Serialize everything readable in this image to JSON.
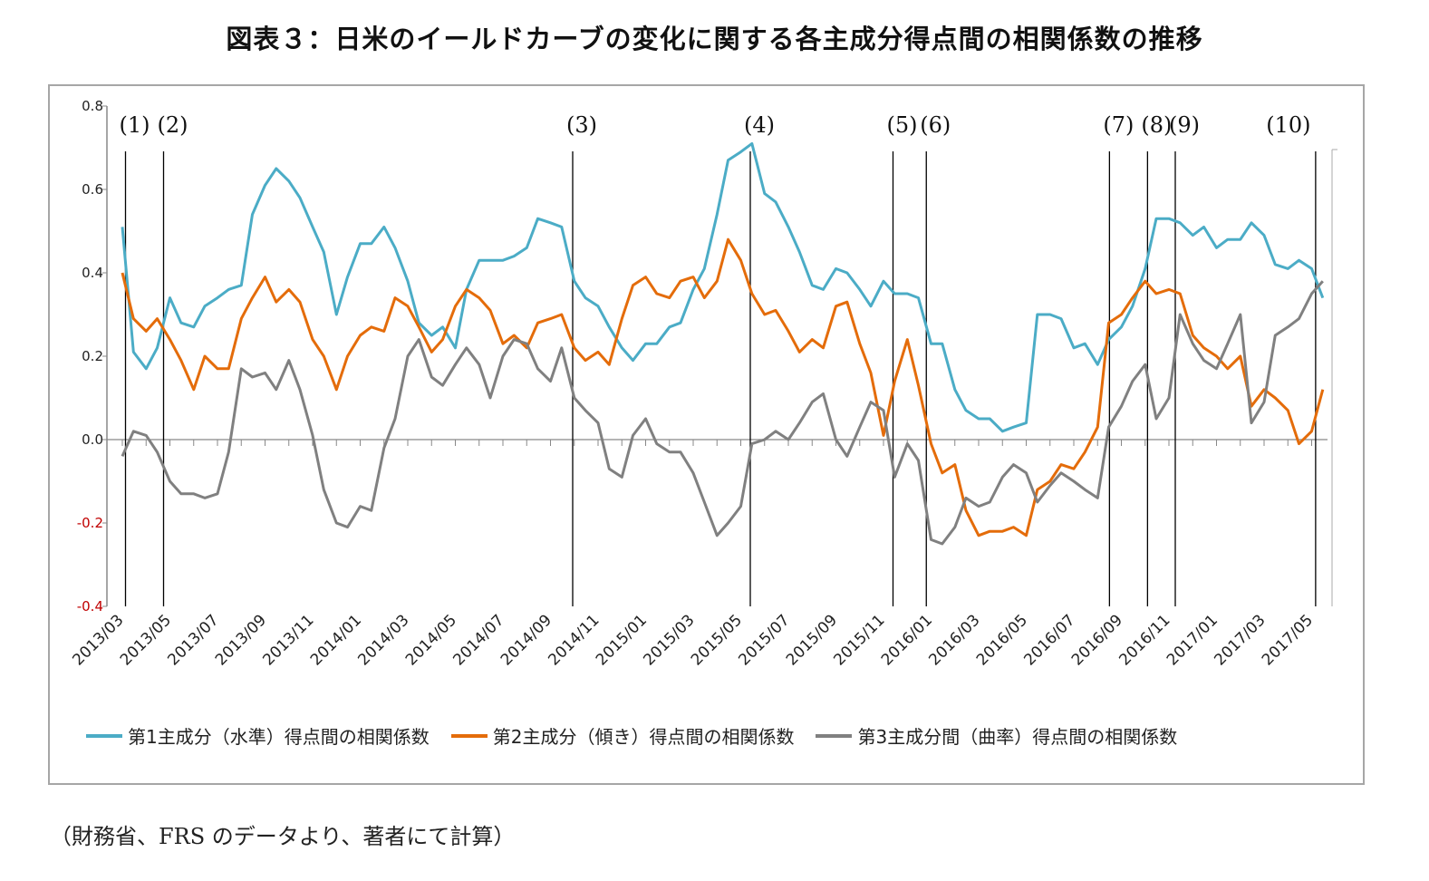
{
  "chart_data": {
    "type": "line",
    "title": "図表３：日米のイールドカーブの変化に関する各主成分得点間の相関係数の推移",
    "xlabel": "",
    "ylabel": "",
    "ylim": [
      -0.4,
      0.8
    ],
    "yticks": [
      "0.8",
      "0.6",
      "0.4",
      "0.2",
      "0.0",
      "-0.2",
      "-0.4"
    ],
    "negative_tick_color": "#c00000",
    "xticks": [
      "2013/03",
      "2013/05",
      "2013/07",
      "2013/09",
      "2013/11",
      "2014/01",
      "2014/03",
      "2014/05",
      "2014/07",
      "2014/09",
      "2014/11",
      "2015/01",
      "2015/03",
      "2015/05",
      "2015/07",
      "2015/09",
      "2015/11",
      "2016/01",
      "2016/03",
      "2016/05",
      "2016/07",
      "2016/09",
      "2016/11",
      "2017/01",
      "2017/03",
      "2017/05"
    ],
    "grid": false,
    "legend_position": "bottom",
    "x": [
      "2013-03-01",
      "2013-03-15",
      "2013-04-01",
      "2013-04-15",
      "2013-05-01",
      "2013-05-15",
      "2013-06-01",
      "2013-06-15",
      "2013-07-01",
      "2013-07-15",
      "2013-08-01",
      "2013-08-15",
      "2013-09-01",
      "2013-09-15",
      "2013-10-01",
      "2013-10-15",
      "2013-11-01",
      "2013-11-15",
      "2013-12-01",
      "2013-12-15",
      "2014-01-01",
      "2014-01-15",
      "2014-02-01",
      "2014-02-15",
      "2014-03-01",
      "2014-03-15",
      "2014-04-01",
      "2014-04-15",
      "2014-05-01",
      "2014-05-15",
      "2014-06-01",
      "2014-06-15",
      "2014-07-01",
      "2014-07-15",
      "2014-08-01",
      "2014-08-15",
      "2014-09-01",
      "2014-09-15",
      "2014-10-01",
      "2014-10-15",
      "2014-11-01",
      "2014-11-15",
      "2014-12-01",
      "2014-12-15",
      "2015-01-01",
      "2015-01-15",
      "2015-02-01",
      "2015-02-15",
      "2015-03-01",
      "2015-03-15",
      "2015-04-01",
      "2015-04-15",
      "2015-05-01",
      "2015-05-15",
      "2015-06-01",
      "2015-06-15",
      "2015-07-01",
      "2015-07-15",
      "2015-08-01",
      "2015-08-15",
      "2015-09-01",
      "2015-09-15",
      "2015-10-01",
      "2015-10-15",
      "2015-11-01",
      "2015-11-15",
      "2015-12-01",
      "2015-12-15",
      "2016-01-01",
      "2016-01-15",
      "2016-02-01",
      "2016-02-15",
      "2016-03-01",
      "2016-03-15",
      "2016-04-01",
      "2016-04-15",
      "2016-05-01",
      "2016-05-15",
      "2016-06-01",
      "2016-06-15",
      "2016-07-01",
      "2016-07-15",
      "2016-08-01",
      "2016-08-15",
      "2016-09-01",
      "2016-09-15",
      "2016-10-01",
      "2016-10-15",
      "2016-11-01",
      "2016-11-15",
      "2016-12-01",
      "2016-12-15",
      "2017-01-01",
      "2017-01-15",
      "2017-02-01",
      "2017-02-15",
      "2017-03-01",
      "2017-03-15",
      "2017-04-01",
      "2017-04-15",
      "2017-05-01",
      "2017-05-15"
    ],
    "series": [
      {
        "name": "第1主成分（水準）得点間の相関係数",
        "color": "#4bacc6",
        "values": [
          0.51,
          0.21,
          0.17,
          0.22,
          0.34,
          0.28,
          0.27,
          0.32,
          0.34,
          0.36,
          0.37,
          0.54,
          0.61,
          0.65,
          0.62,
          0.58,
          0.51,
          0.45,
          0.3,
          0.39,
          0.47,
          0.47,
          0.51,
          0.46,
          0.38,
          0.28,
          0.25,
          0.27,
          0.22,
          0.36,
          0.43,
          0.43,
          0.43,
          0.44,
          0.46,
          0.53,
          0.52,
          0.51,
          0.38,
          0.34,
          0.32,
          0.27,
          0.22,
          0.19,
          0.23,
          0.23,
          0.27,
          0.28,
          0.36,
          0.41,
          0.54,
          0.67,
          0.69,
          0.71,
          0.59,
          0.57,
          0.51,
          0.45,
          0.37,
          0.36,
          0.41,
          0.4,
          0.36,
          0.32,
          0.38,
          0.35,
          0.35,
          0.34,
          0.23,
          0.23,
          0.12,
          0.07,
          0.05,
          0.05,
          0.02,
          0.03,
          0.04,
          0.3,
          0.3,
          0.29,
          0.22,
          0.23,
          0.18,
          0.24,
          0.27,
          0.32,
          0.41,
          0.53,
          0.53,
          0.52,
          0.49,
          0.51,
          0.46,
          0.48,
          0.48,
          0.52,
          0.49,
          0.42,
          0.41,
          0.43,
          0.41,
          0.34
        ]
      },
      {
        "name": "第2主成分（傾き）得点間の相関係数",
        "color": "#e46c0a",
        "values": [
          0.4,
          0.29,
          0.26,
          0.29,
          0.24,
          0.19,
          0.12,
          0.2,
          0.17,
          0.17,
          0.29,
          0.34,
          0.39,
          0.33,
          0.36,
          0.33,
          0.24,
          0.2,
          0.12,
          0.2,
          0.25,
          0.27,
          0.26,
          0.34,
          0.32,
          0.27,
          0.21,
          0.24,
          0.32,
          0.36,
          0.34,
          0.31,
          0.23,
          0.25,
          0.22,
          0.28,
          0.29,
          0.3,
          0.22,
          0.19,
          0.21,
          0.18,
          0.29,
          0.37,
          0.39,
          0.35,
          0.34,
          0.38,
          0.39,
          0.34,
          0.38,
          0.48,
          0.43,
          0.35,
          0.3,
          0.31,
          0.26,
          0.21,
          0.24,
          0.22,
          0.32,
          0.33,
          0.23,
          0.16,
          0.01,
          0.14,
          0.24,
          0.13,
          -0.01,
          -0.08,
          -0.06,
          -0.17,
          -0.23,
          -0.22,
          -0.22,
          -0.21,
          -0.23,
          -0.12,
          -0.1,
          -0.06,
          -0.07,
          -0.03,
          0.03,
          0.28,
          0.3,
          0.34,
          0.38,
          0.35,
          0.36,
          0.35,
          0.25,
          0.22,
          0.2,
          0.17,
          0.2,
          0.08,
          0.12,
          0.1,
          0.07,
          -0.01,
          0.02,
          0.12
        ]
      },
      {
        "name": "第3主成分間（曲率）得点間の相関係数",
        "color": "#808080",
        "values": [
          -0.04,
          0.02,
          0.01,
          -0.03,
          -0.1,
          -0.13,
          -0.13,
          -0.14,
          -0.13,
          -0.03,
          0.17,
          0.15,
          0.16,
          0.12,
          0.19,
          0.12,
          0.01,
          -0.12,
          -0.2,
          -0.21,
          -0.16,
          -0.17,
          -0.02,
          0.05,
          0.2,
          0.24,
          0.15,
          0.13,
          0.18,
          0.22,
          0.18,
          0.1,
          0.2,
          0.24,
          0.23,
          0.17,
          0.14,
          0.22,
          0.1,
          0.07,
          0.04,
          -0.07,
          -0.09,
          0.01,
          0.05,
          -0.01,
          -0.03,
          -0.03,
          -0.08,
          -0.15,
          -0.23,
          -0.2,
          -0.16,
          -0.01,
          0.0,
          0.02,
          0.0,
          0.04,
          0.09,
          0.11,
          0.0,
          -0.04,
          0.03,
          0.09,
          0.07,
          -0.09,
          -0.01,
          -0.05,
          -0.24,
          -0.25,
          -0.21,
          -0.14,
          -0.16,
          -0.15,
          -0.09,
          -0.06,
          -0.08,
          -0.15,
          -0.11,
          -0.08,
          -0.1,
          -0.12,
          -0.14,
          0.03,
          0.08,
          0.14,
          0.18,
          0.05,
          0.1,
          0.3,
          0.23,
          0.19,
          0.17,
          0.23,
          0.3,
          0.04,
          0.09,
          0.25,
          0.27,
          0.29,
          0.35,
          0.38
        ]
      }
    ],
    "events": [
      {
        "label": "(1)",
        "date": "2013-03-05"
      },
      {
        "label": "(2)",
        "date": "2013-04-23"
      },
      {
        "label": "(3)",
        "date": "2014-09-29"
      },
      {
        "label": "(4)",
        "date": "2015-05-13"
      },
      {
        "label": "(5)",
        "date": "2015-11-13"
      },
      {
        "label": "(6)",
        "date": "2015-12-25"
      },
      {
        "label": "(7)",
        "date": "2016-08-16"
      },
      {
        "label": "(8)",
        "date": "2016-10-04"
      },
      {
        "label": "(9)",
        "date": "2016-11-09"
      },
      {
        "label": "(10)",
        "date": "2017-05-06"
      }
    ]
  },
  "footnote": "（財務省、FRS のデータより、著者にて計算）"
}
